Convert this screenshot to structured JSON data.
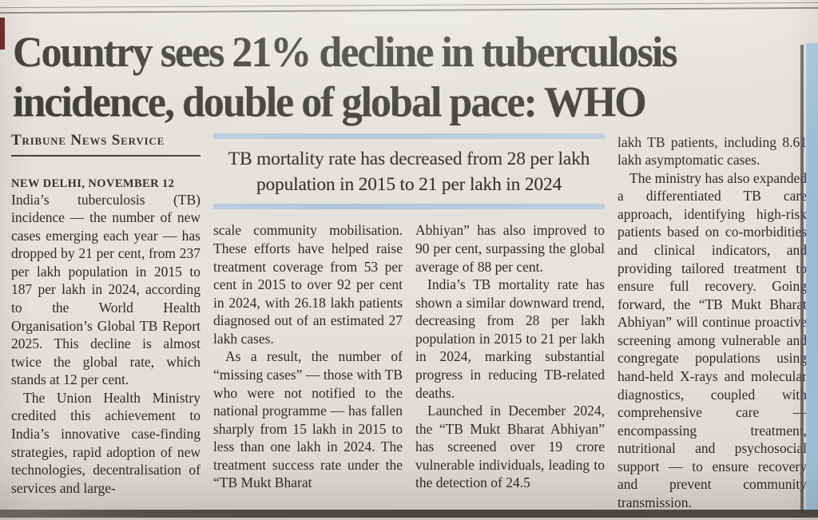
{
  "article": {
    "headline_lines": [
      "Country sees 21% decline in tuberculosis",
      "incidence, double of global pace: WHO"
    ],
    "byline": "Tribune News Service",
    "dateline": "NEW DELHI, NOVEMBER 12",
    "subheadline": "TB mortality rate has decreased from 28 per lakh population in 2015 to 21 per lakh in 2024",
    "columns": [
      {
        "paragraphs": [
          "India’s tuberculosis (TB) incidence — the number of new cases emerging each year — has dropped by 21 per cent, from 237 per lakh population in 2015 to 187 per lakh in 2024, according to the World Health Organisation’s Global TB Report 2025. This decline is almost twice the global rate, which stands at 12 per cent.",
          "The Union Health Ministry credited this achievement to India’s innovative case-finding strategies, rapid adoption of new technologies, decentralisation of services and large-"
        ]
      },
      {
        "paragraphs": [
          "scale community mobilisation. These efforts have helped raise treatment coverage from 53 per cent in 2015 to over 92 per cent in 2024, with 26.18 lakh patients diagnosed out of an estimated 27 lakh cases.",
          "As a result, the number of “missing cases” — those with TB who were not notified to the national programme — has fallen sharply from 15 lakh in 2015 to less than one lakh in 2024. The treatment success rate under the “TB Mukt Bharat"
        ]
      },
      {
        "paragraphs": [
          "Abhiyan” has also improved to 90 per cent, surpassing the global average of 88 per cent.",
          "India’s TB mortality rate has shown a similar downward trend, decreasing from 28 per lakh population in 2015 to 21 per lakh in 2024, marking substantial progress in reducing TB-related deaths.",
          "Launched in December 2024, the “TB Mukt Bharat Abhiyan” has screened over 19 crore vulnerable individuals, leading to the detection of 24.5"
        ]
      },
      {
        "paragraphs": [
          "lakh TB patients, including 8.61 lakh asymptomatic cases.",
          "The ministry has also expanded a differentiated TB care approach, identifying high-risk patients based on co-morbidities and clinical indicators, and providing tailored treatment to ensure full recovery. Going forward, the “TB Mukt Bharat Abhiyan” will continue proactive screening among vulnerable and congregate populations using hand-held X-rays and molecular diagnostics, coupled with comprehensive care — encompassing treatment, nutritional and psychosocial support — to ensure recovery and prevent community transmission."
        ]
      }
    ]
  },
  "colors": {
    "paper": "#e4e1da",
    "ink": "#2e2c29",
    "subhead_bar_blue": "#b3c9da",
    "adjacent_page_blue": "#a5c6de",
    "red_edge_mark": "#6e1d1c"
  }
}
